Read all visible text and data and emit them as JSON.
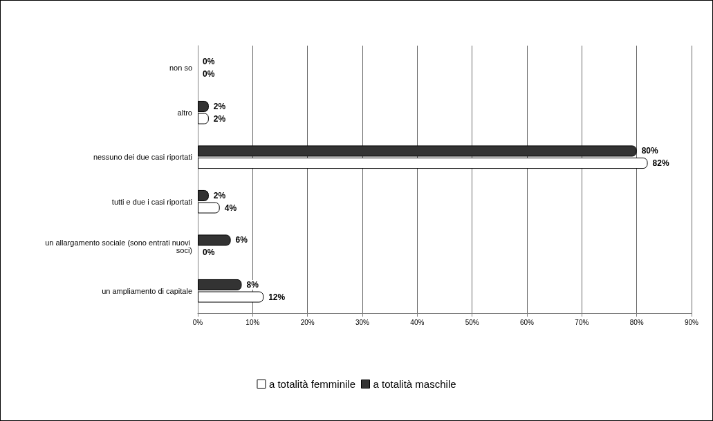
{
  "chart_data": {
    "type": "bar",
    "orientation": "horizontal",
    "categories": [
      "non so",
      "altro",
      "nessuno dei due casi riportati",
      "tutti e due i casi riportati",
      "un allargamento sociale (sono entrati nuovi soci)",
      "un ampliamento di capitale"
    ],
    "series": [
      {
        "name": "a totalità femminile",
        "color": "#ffffff",
        "values": [
          0,
          2,
          82,
          4,
          0,
          12
        ],
        "value_labels": [
          "0%",
          "2%",
          "82%",
          "4%",
          "0%",
          "12%"
        ]
      },
      {
        "name": "a totalità maschile",
        "color": "#333333",
        "values": [
          0,
          2,
          80,
          2,
          6,
          8
        ],
        "value_labels": [
          "0%",
          "2%",
          "80%",
          "2%",
          "6%",
          "8%"
        ]
      }
    ],
    "xlim": [
      0,
      90
    ],
    "xticks": [
      {
        "value": 0,
        "label": "0%"
      },
      {
        "value": 10,
        "label": "10%"
      },
      {
        "value": 20,
        "label": "20%"
      },
      {
        "value": 30,
        "label": "30%"
      },
      {
        "value": 40,
        "label": "40%"
      },
      {
        "value": 50,
        "label": "50%"
      },
      {
        "value": 60,
        "label": "60%"
      },
      {
        "value": 70,
        "label": "70%"
      },
      {
        "value": 80,
        "label": "80%"
      },
      {
        "value": 90,
        "label": "90%"
      }
    ],
    "grid": "x",
    "legend": "bottom"
  }
}
